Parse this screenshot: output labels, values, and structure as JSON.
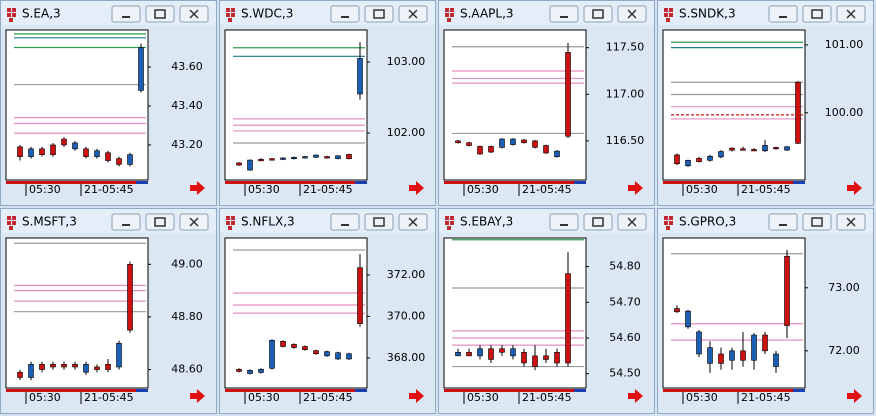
{
  "chart_data": [
    {
      "type": "candlestick",
      "title": "S.EA,3",
      "ylim": [
        43.02,
        43.79
      ],
      "yticks": [
        {
          "value": 43.2,
          "label": "43.20"
        },
        {
          "value": 43.4,
          "label": "43.40"
        },
        {
          "value": 43.6,
          "label": "43.60"
        }
      ],
      "categories": [
        null,
        "05:30",
        null,
        null,
        null,
        null,
        "21-05:45",
        null,
        null,
        null,
        null,
        null
      ],
      "open": [
        43.14,
        43.18,
        43.15,
        43.15,
        43.2,
        43.21,
        43.14,
        43.17,
        43.12,
        43.1,
        43.15,
        43.7
      ],
      "high": [
        43.2,
        43.19,
        43.19,
        43.21,
        43.24,
        43.22,
        43.19,
        43.18,
        43.17,
        43.14,
        43.16,
        43.72
      ],
      "low": [
        43.12,
        43.13,
        43.14,
        43.14,
        43.19,
        43.17,
        43.13,
        43.13,
        43.11,
        43.09,
        43.09,
        43.47
      ],
      "close": [
        43.19,
        43.14,
        43.18,
        43.2,
        43.23,
        43.18,
        43.18,
        43.14,
        43.16,
        43.13,
        43.1,
        43.48
      ],
      "ref_lines": [
        {
          "value": 43.77,
          "color": "#2e9e4a"
        },
        {
          "value": 43.75,
          "color": "#1f7a8c"
        },
        {
          "value": 43.7,
          "color": "#2e9e4a"
        },
        {
          "value": 43.51,
          "color": "#999999"
        },
        {
          "value": 43.34,
          "color": "#e68fc0"
        },
        {
          "value": 43.31,
          "color": "#e68fc0"
        },
        {
          "value": 43.26,
          "color": "#e68fc0"
        }
      ],
      "up_color": "#cc1111",
      "down_color": "#1a5fb4"
    },
    {
      "type": "candlestick",
      "title": "S.WDC,3",
      "ylim": [
        101.34,
        103.45
      ],
      "yticks": [
        {
          "value": 102,
          "label": "102.00"
        },
        {
          "value": 103,
          "label": "103.00"
        }
      ],
      "categories": [
        null,
        "05:30",
        null,
        null,
        null,
        null,
        "21-05:45",
        null,
        null,
        null,
        null,
        null
      ],
      "open": [
        101.55,
        101.62,
        101.62,
        101.63,
        101.65,
        101.66,
        101.67,
        101.69,
        101.65,
        101.68,
        101.64,
        103.05
      ],
      "high": [
        101.59,
        101.63,
        101.65,
        101.65,
        101.66,
        101.67,
        101.68,
        101.7,
        101.68,
        101.69,
        101.71,
        103.28
      ],
      "low": [
        101.54,
        101.47,
        101.61,
        101.62,
        101.62,
        101.63,
        101.64,
        101.65,
        101.64,
        101.63,
        101.63,
        102.47
      ],
      "close": [
        101.58,
        101.48,
        101.63,
        101.64,
        101.63,
        101.64,
        101.65,
        101.66,
        101.67,
        101.64,
        101.7,
        102.55
      ],
      "ref_lines": [
        {
          "value": 103.2,
          "color": "#2e9e4a"
        },
        {
          "value": 103.08,
          "color": "#1f7a8c"
        },
        {
          "value": 102.2,
          "color": "#e68fc0"
        },
        {
          "value": 102.11,
          "color": "#e68fc0"
        },
        {
          "value": 102.03,
          "color": "#e68fc0"
        },
        {
          "value": 101.86,
          "color": "#999999"
        }
      ],
      "up_color": "#cc1111",
      "down_color": "#1a5fb4"
    },
    {
      "type": "candlestick",
      "title": "S.AAPL,3",
      "ylim": [
        116.08,
        117.69
      ],
      "yticks": [
        {
          "value": 116.5,
          "label": "116.50"
        },
        {
          "value": 117,
          "label": "117.00"
        },
        {
          "value": 117.5,
          "label": "117.50"
        }
      ],
      "categories": [
        null,
        "05:30",
        null,
        null,
        null,
        null,
        "21-05:45",
        null,
        null,
        null,
        null
      ],
      "open": [
        116.48,
        116.45,
        116.36,
        116.38,
        116.52,
        116.52,
        116.48,
        116.43,
        116.37,
        116.39,
        116.55
      ],
      "high": [
        116.51,
        116.49,
        116.45,
        116.45,
        116.53,
        116.53,
        116.52,
        116.51,
        116.46,
        116.4,
        117.55
      ],
      "low": [
        116.47,
        116.44,
        116.35,
        116.37,
        116.42,
        116.45,
        116.47,
        116.42,
        116.36,
        116.32,
        116.53
      ],
      "close": [
        116.5,
        116.48,
        116.44,
        116.44,
        116.43,
        116.46,
        116.51,
        116.5,
        116.45,
        116.33,
        117.45
      ],
      "ref_lines": [
        {
          "value": 117.51,
          "color": "#999999"
        },
        {
          "value": 117.25,
          "color": "#e68fc0"
        },
        {
          "value": 117.17,
          "color": "#e68fc0"
        },
        {
          "value": 117.12,
          "color": "#e68fc0"
        },
        {
          "value": 116.58,
          "color": "#999999"
        }
      ],
      "up_color": "#cc1111",
      "down_color": "#1a5fb4"
    },
    {
      "type": "candlestick",
      "title": "S.SNDK,3",
      "ylim": [
        99.01,
        101.22
      ],
      "yticks": [
        {
          "value": 100,
          "label": "100.00"
        },
        {
          "value": 101,
          "label": "101.00"
        }
      ],
      "categories": [
        null,
        "05:30",
        null,
        null,
        null,
        null,
        "21-05:45",
        null,
        null,
        null,
        null,
        null
      ],
      "open": [
        99.25,
        99.3,
        99.28,
        99.36,
        99.43,
        99.45,
        99.46,
        99.45,
        99.52,
        99.47,
        99.5,
        99.55
      ],
      "high": [
        99.4,
        99.31,
        99.35,
        99.38,
        99.45,
        99.49,
        99.5,
        99.48,
        99.6,
        99.5,
        99.51,
        100.47
      ],
      "low": [
        99.23,
        99.2,
        99.27,
        99.28,
        99.33,
        99.43,
        99.45,
        99.44,
        99.42,
        99.46,
        99.44,
        99.54
      ],
      "close": [
        99.38,
        99.22,
        99.33,
        99.3,
        99.35,
        99.48,
        99.47,
        99.46,
        99.44,
        99.49,
        99.45,
        100.45
      ],
      "ref_lines": [
        {
          "value": 101.04,
          "color": "#2e9e4a"
        },
        {
          "value": 100.96,
          "color": "#1f7a8c"
        },
        {
          "value": 100.45,
          "color": "#999999"
        },
        {
          "value": 100.27,
          "color": "#999999"
        },
        {
          "value": 100.09,
          "color": "#e68fc0"
        },
        {
          "value": 99.97,
          "color": "#cc1111",
          "dash": true
        },
        {
          "value": 99.91,
          "color": "#e68fc0"
        }
      ],
      "up_color": "#cc1111",
      "down_color": "#1a5fb4"
    },
    {
      "type": "candlestick",
      "title": "S.MSFT,3",
      "ylim": [
        48.53,
        49.1
      ],
      "yticks": [
        {
          "value": 48.6,
          "label": "48.60"
        },
        {
          "value": 48.8,
          "label": "48.80"
        },
        {
          "value": 49,
          "label": "49.00"
        }
      ],
      "categories": [
        null,
        "05:30",
        null,
        null,
        null,
        null,
        "21-05:45",
        null,
        null,
        null,
        null
      ],
      "open": [
        48.57,
        48.62,
        48.6,
        48.61,
        48.61,
        48.61,
        48.62,
        48.6,
        48.6,
        48.7,
        48.75
      ],
      "high": [
        48.6,
        48.63,
        48.63,
        48.63,
        48.63,
        48.63,
        48.63,
        48.62,
        48.64,
        48.71,
        49.01
      ],
      "low": [
        48.56,
        48.56,
        48.59,
        48.6,
        48.6,
        48.6,
        48.58,
        48.59,
        48.59,
        48.6,
        48.74
      ],
      "close": [
        48.59,
        48.57,
        48.62,
        48.62,
        48.62,
        48.62,
        48.59,
        48.61,
        48.62,
        48.61,
        49
      ],
      "ref_lines": [
        {
          "value": 49.08,
          "color": "#999999"
        },
        {
          "value": 48.92,
          "color": "#e68fc0"
        },
        {
          "value": 48.9,
          "color": "#e68fc0"
        },
        {
          "value": 48.86,
          "color": "#e68fc0"
        },
        {
          "value": 48.82,
          "color": "#999999"
        }
      ],
      "up_color": "#cc1111",
      "down_color": "#1a5fb4"
    },
    {
      "type": "candlestick",
      "title": "S.NFLX,3",
      "ylim": [
        366.55,
        373.78
      ],
      "yticks": [
        {
          "value": 368,
          "label": "368.00"
        },
        {
          "value": 370,
          "label": "370.00"
        },
        {
          "value": 372,
          "label": "372.00"
        }
      ],
      "categories": [
        null,
        "05:30",
        null,
        null,
        null,
        null,
        "21-05:45",
        null,
        null,
        null,
        null,
        null
      ],
      "open": [
        367.35,
        367.4,
        367.45,
        368.85,
        368.55,
        368.5,
        368.4,
        368.2,
        368.3,
        368.25,
        368.2,
        369.65
      ],
      "high": [
        367.5,
        367.45,
        367.5,
        368.9,
        368.85,
        368.7,
        368.6,
        368.4,
        368.35,
        368.3,
        368.25,
        373
      ],
      "low": [
        367.3,
        367.2,
        367.25,
        367.45,
        368.5,
        368.45,
        368.35,
        368.15,
        368.05,
        367.9,
        367.9,
        369.5
      ],
      "close": [
        367.45,
        367.25,
        367.3,
        367.5,
        368.8,
        368.65,
        368.55,
        368.35,
        368.1,
        367.95,
        367.95,
        372.35
      ],
      "ref_lines": [
        {
          "value": 373.2,
          "color": "#999999"
        },
        {
          "value": 371.13,
          "color": "#e68fc0"
        },
        {
          "value": 370.55,
          "color": "#e68fc0"
        },
        {
          "value": 370.16,
          "color": "#e68fc0"
        }
      ],
      "up_color": "#cc1111",
      "down_color": "#1a5fb4"
    },
    {
      "type": "candlestick",
      "title": "S.EBAY,3",
      "ylim": [
        54.46,
        54.88
      ],
      "yticks": [
        {
          "value": 54.5,
          "label": "54.50"
        },
        {
          "value": 54.6,
          "label": "54.60"
        },
        {
          "value": 54.7,
          "label": "54.70"
        },
        {
          "value": 54.8,
          "label": "54.80"
        }
      ],
      "categories": [
        null,
        "05:30",
        null,
        null,
        null,
        null,
        "21-05:45",
        null,
        null,
        null,
        null
      ],
      "open": [
        54.56,
        54.55,
        54.57,
        54.54,
        54.56,
        54.57,
        54.53,
        54.52,
        54.54,
        54.53,
        54.53
      ],
      "high": [
        54.57,
        54.57,
        54.58,
        54.58,
        54.58,
        54.58,
        54.57,
        54.58,
        54.57,
        54.57,
        54.84
      ],
      "low": [
        54.55,
        54.55,
        54.54,
        54.53,
        54.55,
        54.54,
        54.52,
        54.51,
        54.53,
        54.52,
        54.52
      ],
      "close": [
        54.55,
        54.56,
        54.55,
        54.57,
        54.57,
        54.55,
        54.56,
        54.55,
        54.55,
        54.56,
        54.78
      ],
      "ref_lines": [
        {
          "value": 54.875,
          "color": "#2e9e4a"
        },
        {
          "value": 54.74,
          "color": "#999999"
        },
        {
          "value": 54.62,
          "color": "#e68fc0"
        },
        {
          "value": 54.6,
          "color": "#e68fc0"
        },
        {
          "value": 54.58,
          "color": "#e68fc0"
        },
        {
          "value": 54.52,
          "color": "#999999"
        }
      ],
      "up_color": "#cc1111",
      "down_color": "#1a5fb4"
    },
    {
      "type": "candlestick",
      "title": "S.GPRO,3",
      "ylim": [
        71.41,
        73.79
      ],
      "yticks": [
        {
          "value": 72,
          "label": "72.00"
        },
        {
          "value": 73,
          "label": "73.00"
        }
      ],
      "categories": [
        null,
        "05:30",
        null,
        null,
        null,
        null,
        "21-05:45",
        null,
        null,
        null,
        null
      ],
      "open": [
        72.62,
        72.63,
        72.3,
        72.05,
        71.8,
        72,
        71.85,
        72.25,
        72,
        71.95,
        72.4
      ],
      "high": [
        72.72,
        72.65,
        72.33,
        72.15,
        72.05,
        72.05,
        72.3,
        72.28,
        72.3,
        72,
        73.6
      ],
      "low": [
        72.6,
        72.35,
        71.9,
        71.65,
        71.7,
        71.7,
        71.75,
        71.7,
        71.95,
        71.65,
        72.2
      ],
      "close": [
        72.67,
        72.38,
        71.95,
        71.8,
        71.95,
        71.85,
        72,
        71.85,
        72.25,
        71.75,
        73.5
      ],
      "ref_lines": [
        {
          "value": 73.54,
          "color": "#999999"
        },
        {
          "value": 72.43,
          "color": "#e68fc0"
        },
        {
          "value": 72.17,
          "color": "#e68fc0"
        }
      ],
      "up_color": "#cc1111",
      "down_color": "#1a5fb4"
    }
  ]
}
